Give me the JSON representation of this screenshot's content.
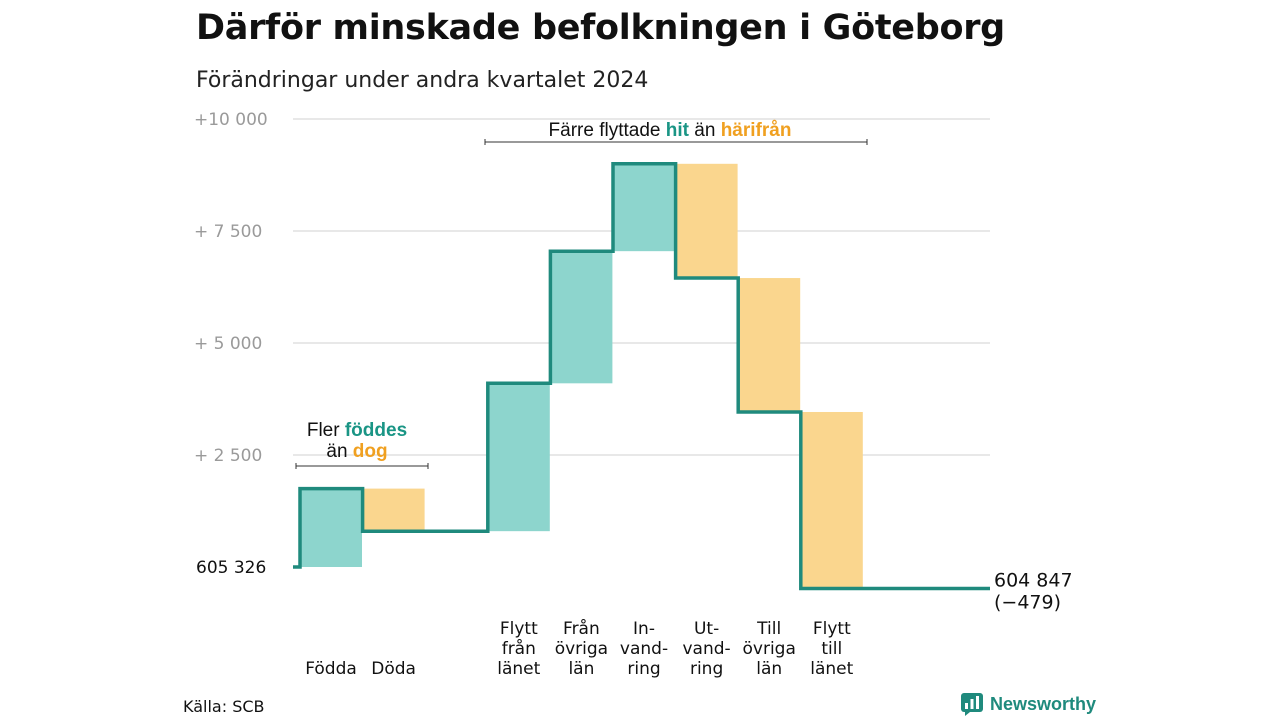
{
  "header": {
    "title": "Därför minskade befolkningen i Göteborg",
    "subtitle": "Förändringar under andra kvartalet 2024"
  },
  "colors": {
    "inflow": "#8dd5cd",
    "outflow": "#fad68e",
    "line": "#1f8a7d",
    "grid": "#d9d9d9",
    "accent_green": "#1a9585",
    "accent_orange": "#f0a020"
  },
  "chart_data": {
    "type": "waterfall",
    "title": "Därför minskade befolkningen i Göteborg",
    "subtitle": "Förändringar under andra kvartalet 2024",
    "y_ticks": [
      {
        "value": 10000,
        "label": "+10   000"
      },
      {
        "value": 7500,
        "label": "+  7 500"
      },
      {
        "value": 5000,
        "label": "+  5 000"
      },
      {
        "value": 2500,
        "label": "+  2 500"
      },
      {
        "value": 0,
        "label": "605   326"
      }
    ],
    "ylim": [
      -600,
      10000
    ],
    "start_value": 605326,
    "end_label": {
      "value": "604 847",
      "change": "(−479)"
    },
    "steps": [
      {
        "label": [
          "Födda"
        ],
        "change": 1750,
        "kind": "in"
      },
      {
        "label": [
          "Döda"
        ],
        "change": -950,
        "kind": "out"
      },
      {
        "label": [
          ""
        ],
        "change": 0,
        "kind": "gap"
      },
      {
        "label": [
          "Flytt",
          "från",
          "länet"
        ],
        "change": 3300,
        "kind": "in"
      },
      {
        "label": [
          "Från",
          "övriga",
          "län"
        ],
        "change": 2950,
        "kind": "in"
      },
      {
        "label": [
          "In-",
          "vand-",
          "ring"
        ],
        "change": 1950,
        "kind": "in"
      },
      {
        "label": [
          "Ut-",
          "vand-",
          "ring"
        ],
        "change": -2550,
        "kind": "out"
      },
      {
        "label": [
          "Till",
          "övriga",
          "län"
        ],
        "change": -2990,
        "kind": "out"
      },
      {
        "label": [
          "Flytt",
          "till",
          "länet"
        ],
        "change": -3939,
        "kind": "out"
      }
    ],
    "annotations": [
      {
        "id": "births",
        "parts": [
          {
            "line": 1,
            "text": "Fler ",
            "style": "plain"
          },
          {
            "line": 1,
            "text": "föddes",
            "style": "green"
          },
          {
            "line": 2,
            "text": "än ",
            "style": "plain"
          },
          {
            "line": 2,
            "text": "dog",
            "style": "orange"
          }
        ]
      },
      {
        "id": "moves",
        "parts": [
          {
            "line": 1,
            "text": "Färre flyttade ",
            "style": "plain"
          },
          {
            "line": 1,
            "text": "hit",
            "style": "green"
          },
          {
            "line": 1,
            "text": " än ",
            "style": "plain"
          },
          {
            "line": 1,
            "text": "härifrån",
            "style": "orange"
          }
        ]
      }
    ]
  },
  "footer": {
    "source": "Källa: SCB",
    "brand": "Newsworthy"
  }
}
